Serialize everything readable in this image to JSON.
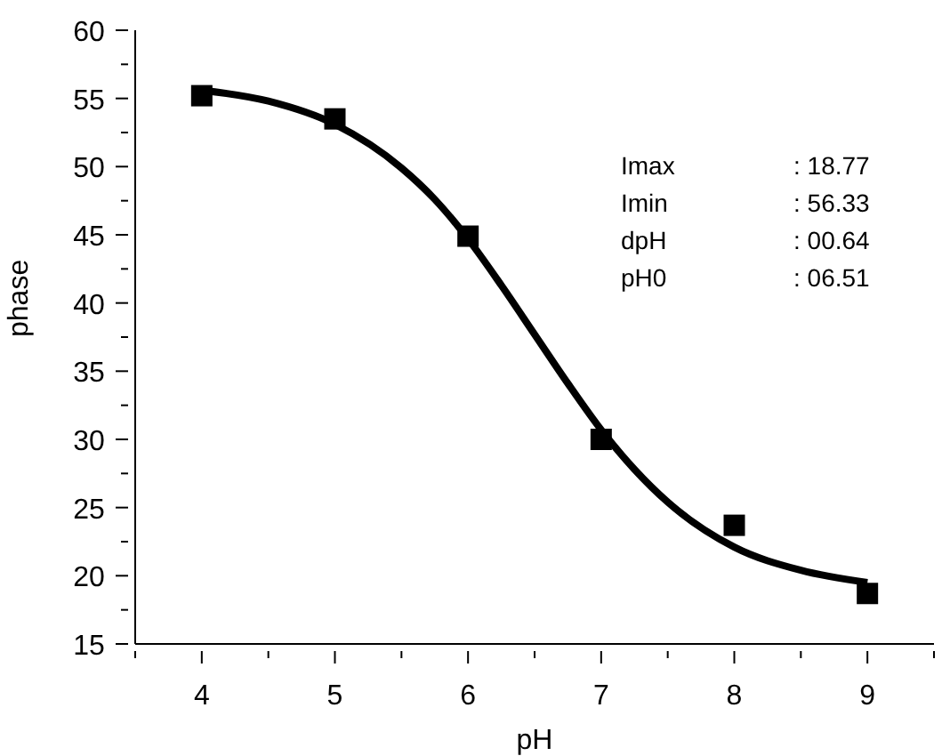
{
  "chart_data": {
    "type": "scatter",
    "xlabel": "pH",
    "ylabel": "phase",
    "x": [
      4,
      5,
      6,
      7,
      8,
      9
    ],
    "series": [
      {
        "color": "#000000",
        "marker": "square",
        "values": [
          55.2,
          53.5,
          44.9,
          30.0,
          23.7,
          18.7
        ]
      },
      {
        "type": "line",
        "color": "#000000",
        "marker": "none",
        "line_style": "solid",
        "x": [
          4,
          4.5,
          5,
          5.5,
          5.75,
          6,
          6.25,
          6.5,
          6.75,
          7,
          7.25,
          7.5,
          8,
          8.5,
          9
        ],
        "values": [
          55.6,
          54.8,
          53.1,
          49.9,
          47.6,
          44.7,
          41.3,
          37.7,
          34.1,
          30.7,
          27.8,
          25.4,
          22.1,
          20.4,
          19.5
        ]
      }
    ],
    "xlim": [
      3.5,
      9.5
    ],
    "xticks": [
      {
        "value": 3.5,
        "label": null
      },
      4,
      {
        "value": 4.5,
        "label": null
      },
      5,
      {
        "value": 5.5,
        "label": null
      },
      6,
      {
        "value": 6.5,
        "label": null
      },
      7,
      {
        "value": 7.5,
        "label": null
      },
      8,
      {
        "value": 8.5,
        "label": null
      },
      9,
      {
        "value": 9.5,
        "label": null
      }
    ],
    "ylim": [
      15,
      60
    ],
    "yticks": [
      15,
      {
        "value": 17.5,
        "label": null
      },
      20,
      {
        "value": 22.5,
        "label": null
      },
      25,
      {
        "value": 27.5,
        "label": null
      },
      30,
      {
        "value": 32.5,
        "label": null
      },
      35,
      {
        "value": 37.5,
        "label": null
      },
      40,
      {
        "value": 42.5,
        "label": null
      },
      45,
      {
        "value": 47.5,
        "label": null
      },
      50,
      {
        "value": 52.5,
        "label": null
      },
      55,
      {
        "value": 57.5,
        "label": null
      },
      60
    ],
    "annotations": [
      "Imax : 18.77",
      "Imin : 56.33",
      "dpH : 00.64",
      "pH0 : 06.51"
    ]
  }
}
